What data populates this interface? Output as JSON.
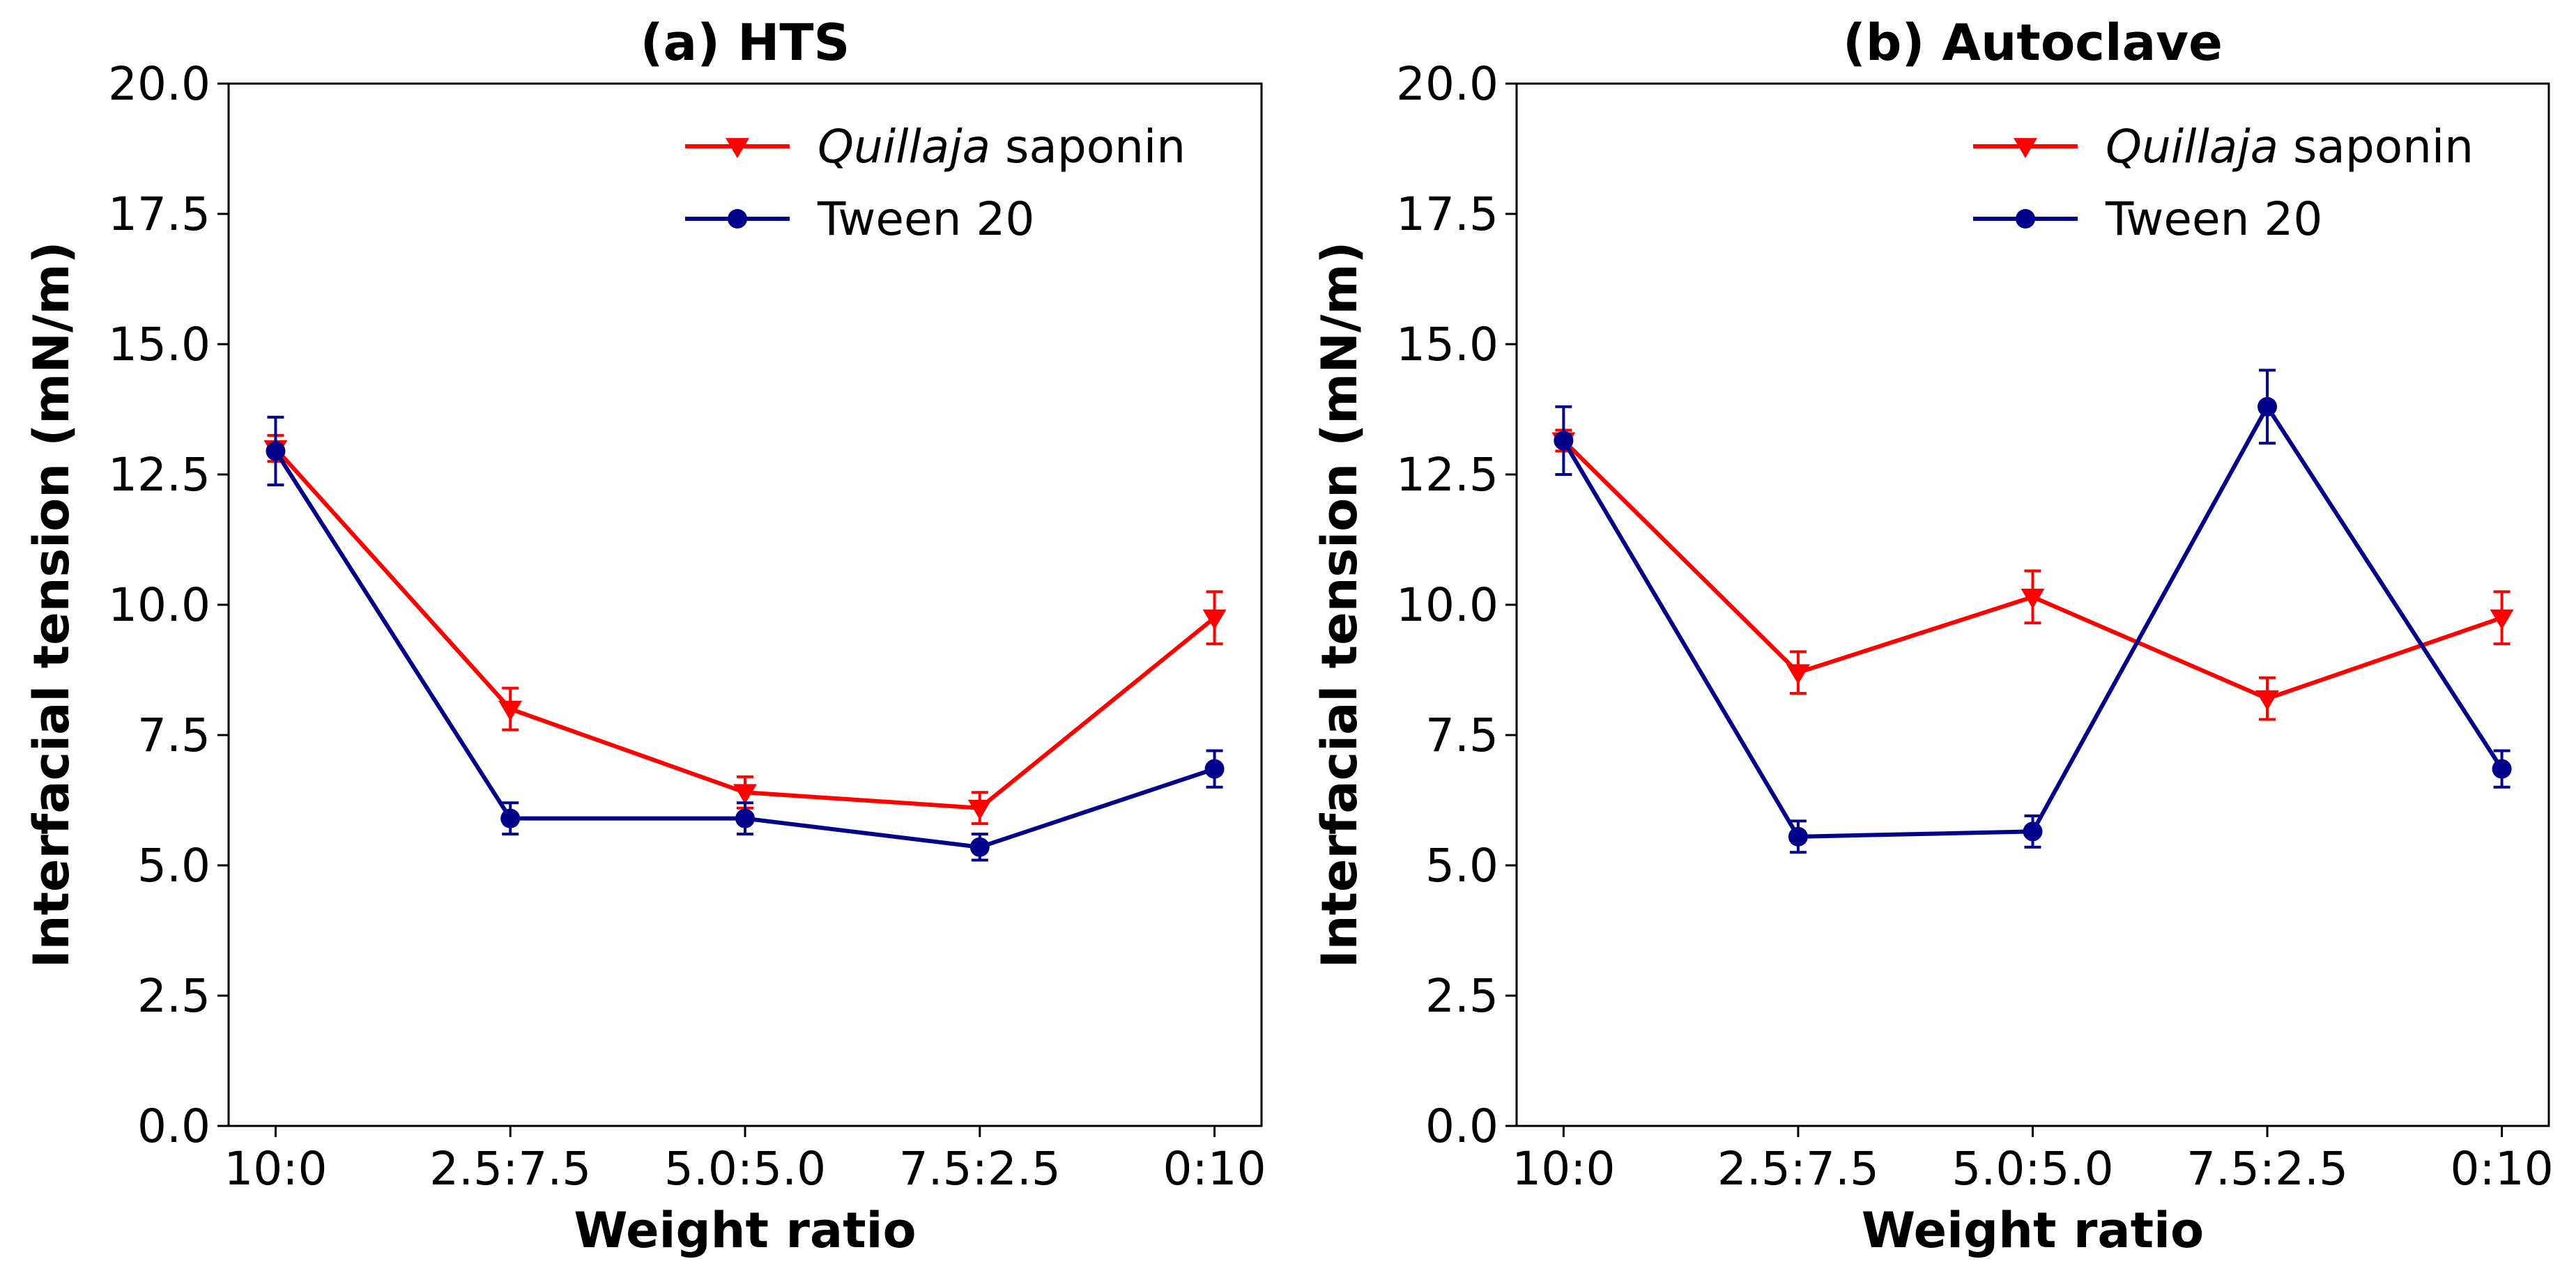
{
  "chart_data": [
    {
      "type": "line",
      "title": "(a) HTS",
      "xlabel": "Weight ratio",
      "ylabel": "Interfacial tension (mN/m)",
      "categories": [
        "10:0",
        "2.5:7.5",
        "5.0:5.0",
        "7.5:2.5",
        "0:10"
      ],
      "ylim": [
        0,
        20
      ],
      "yticks": [
        "0.0",
        "2.5",
        "5.0",
        "7.5",
        "10.0",
        "12.5",
        "15.0",
        "17.5",
        "20.0"
      ],
      "legend_position": "top-right",
      "series": [
        {
          "name_italic": "Quillaja",
          "name_rest": " saponin",
          "color": "#ff0000",
          "marker": "triangle-down",
          "values": [
            13.0,
            8.0,
            6.4,
            6.1,
            9.75
          ],
          "errors": [
            0.25,
            0.4,
            0.3,
            0.3,
            0.5
          ]
        },
        {
          "name_italic": "",
          "name_rest": "Tween 20",
          "color": "#00008b",
          "marker": "circle",
          "values": [
            12.95,
            5.9,
            5.9,
            5.35,
            6.85
          ],
          "errors": [
            0.65,
            0.3,
            0.3,
            0.25,
            0.35
          ]
        }
      ]
    },
    {
      "type": "line",
      "title": "(b) Autoclave",
      "xlabel": "Weight ratio",
      "ylabel": "Interfacial tension (mN/m)",
      "categories": [
        "10:0",
        "2.5:7.5",
        "5.0:5.0",
        "7.5:2.5",
        "0:10"
      ],
      "ylim": [
        0,
        20
      ],
      "yticks": [
        "0.0",
        "2.5",
        "5.0",
        "7.5",
        "10.0",
        "12.5",
        "15.0",
        "17.5",
        "20.0"
      ],
      "legend_position": "top-right",
      "series": [
        {
          "name_italic": "Quillaja",
          "name_rest": " saponin",
          "color": "#ff0000",
          "marker": "triangle-down",
          "values": [
            13.15,
            8.7,
            10.15,
            8.2,
            9.75
          ],
          "errors": [
            0.2,
            0.4,
            0.5,
            0.4,
            0.5
          ]
        },
        {
          "name_italic": "",
          "name_rest": "Tween 20",
          "color": "#00008b",
          "marker": "circle",
          "values": [
            13.15,
            5.55,
            5.65,
            13.8,
            6.85
          ],
          "errors": [
            0.65,
            0.3,
            0.3,
            0.7,
            0.35
          ]
        }
      ]
    }
  ]
}
